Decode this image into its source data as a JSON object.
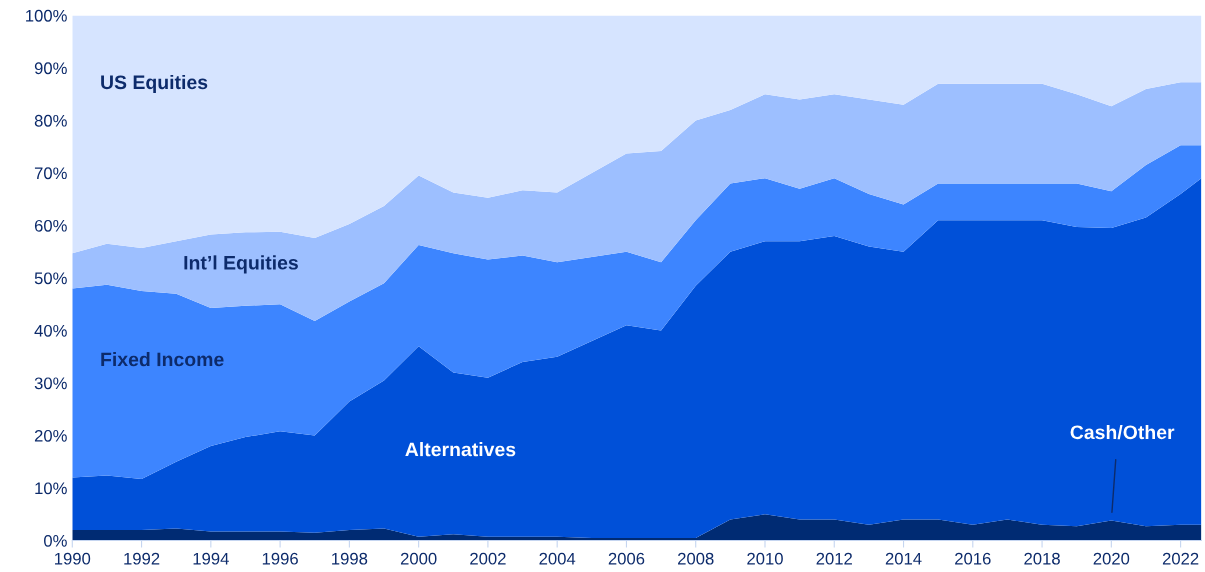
{
  "chart_data": {
    "type": "area",
    "stacked": true,
    "x": [
      1990,
      1991,
      1992,
      1993,
      1994,
      1995,
      1996,
      1997,
      1998,
      1999,
      2000,
      2001,
      2002,
      2003,
      2004,
      2005,
      2006,
      2007,
      2008,
      2009,
      2010,
      2011,
      2012,
      2013,
      2014,
      2015,
      2016,
      2017,
      2018,
      2019,
      2020,
      2021,
      2022,
      2022.6
    ],
    "series": [
      {
        "name": "Cash/Other",
        "color": "#002b73",
        "values": [
          2,
          2,
          2,
          2.3,
          1.7,
          1.7,
          1.7,
          1.5,
          2,
          2.3,
          0.7,
          1.2,
          0.7,
          0.7,
          0.7,
          0.5,
          0.5,
          0.5,
          0.5,
          4,
          5,
          4,
          4,
          3,
          4,
          4,
          3,
          4,
          3,
          2.7,
          3.8,
          2.7,
          3,
          3
        ]
      },
      {
        "name": "Alternatives",
        "color": "#0050d8",
        "values": [
          10,
          10.4,
          9.7,
          12.7,
          16.3,
          18,
          19.1,
          18.5,
          24.5,
          28.2,
          36.3,
          30.8,
          30.3,
          33.3,
          34.3,
          37.5,
          40.5,
          39.5,
          48,
          51,
          52,
          53,
          54,
          53,
          51,
          57,
          58,
          57,
          58,
          57,
          55.7,
          58.8,
          63,
          66
        ]
      },
      {
        "name": "Fixed Income",
        "color": "#3d85ff",
        "values": [
          36,
          36.3,
          35.8,
          32,
          26.3,
          25,
          24.2,
          21.8,
          19,
          18.5,
          19.3,
          22.7,
          22.5,
          20.3,
          18,
          16,
          14,
          13,
          12.5,
          13,
          12,
          10,
          11,
          10,
          9,
          7,
          7,
          7,
          7,
          8.3,
          7,
          10,
          9.3,
          6.3
        ]
      },
      {
        "name": "Int’l Equities",
        "color": "#9dbfff",
        "values": [
          6.7,
          7.8,
          8.2,
          10,
          14,
          14,
          13.8,
          15.8,
          14.8,
          14.7,
          13.2,
          11.6,
          11.8,
          12.4,
          13.3,
          16,
          18.7,
          21.2,
          19,
          14,
          16,
          17,
          16,
          18,
          19,
          19,
          19,
          19,
          19,
          17,
          16.2,
          14.5,
          12,
          12
        ]
      },
      {
        "name": "US Equities",
        "color": "#d6e4ff",
        "values": [
          45.3,
          43.5,
          44.3,
          43,
          41.7,
          41.3,
          41.2,
          42.4,
          39.7,
          36.3,
          30.5,
          33.7,
          34.7,
          33.3,
          33.7,
          30,
          26.3,
          25.8,
          20,
          18,
          15,
          16,
          15,
          16,
          17,
          13,
          13,
          13,
          13,
          15,
          17.3,
          14,
          12.7,
          12.7
        ]
      }
    ],
    "xlim": [
      1990,
      2022.6
    ],
    "ylim": [
      0,
      100
    ],
    "xticks": [
      1990,
      1992,
      1994,
      1996,
      1998,
      2000,
      2002,
      2004,
      2006,
      2008,
      2010,
      2012,
      2014,
      2016,
      2018,
      2020,
      2022
    ],
    "yticks": [
      {
        "value": 0,
        "label": "0%"
      },
      {
        "value": 10,
        "label": "10%"
      },
      {
        "value": 20,
        "label": "20%"
      },
      {
        "value": 30,
        "label": "30%"
      },
      {
        "value": 40,
        "label": "40%"
      },
      {
        "value": 50,
        "label": "50%"
      },
      {
        "value": 60,
        "label": "60%"
      },
      {
        "value": 70,
        "label": "70%"
      },
      {
        "value": 80,
        "label": "80%"
      },
      {
        "value": 90,
        "label": "90%"
      },
      {
        "value": 100,
        "label": "100%"
      }
    ],
    "grid": false,
    "legend": false
  }
}
